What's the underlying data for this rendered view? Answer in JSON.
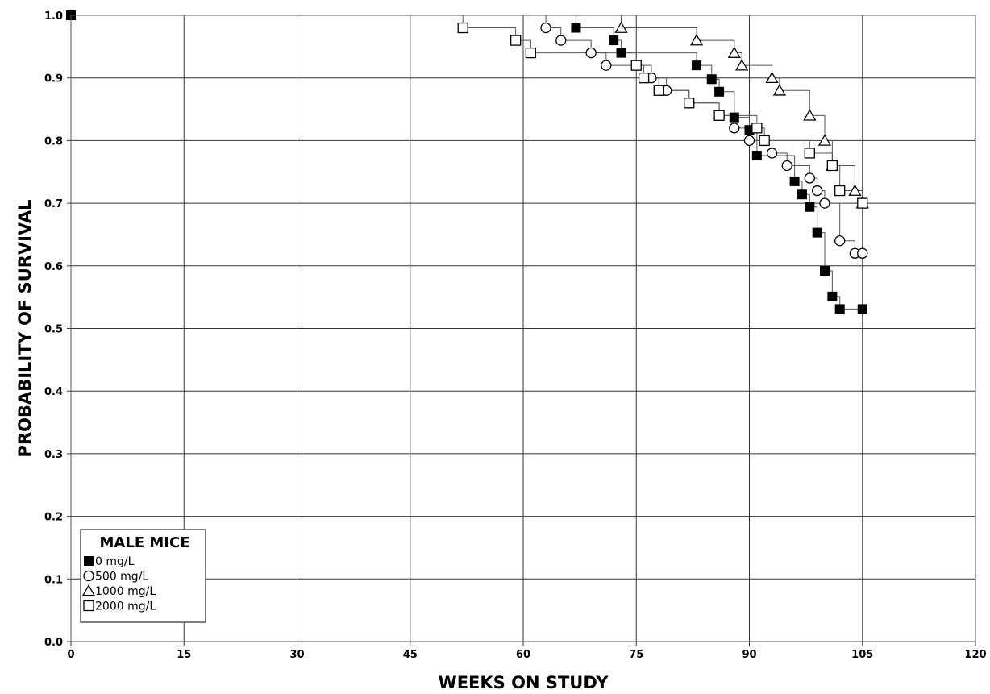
{
  "chart_data": {
    "type": "line",
    "subtype": "kaplan-meier step survival",
    "xlabel": "WEEKS ON STUDY",
    "ylabel": "PROBABILITY OF SURVIVAL",
    "xlim": [
      0,
      120
    ],
    "ylim": [
      0.0,
      1.0
    ],
    "xticks": [
      "0",
      "15",
      "30",
      "45",
      "60",
      "75",
      "90",
      "105",
      "120"
    ],
    "yticks": [
      "0.0",
      "0.1",
      "0.2",
      "0.3",
      "0.4",
      "0.5",
      "0.6",
      "0.7",
      "0.8",
      "0.9",
      "1.0"
    ],
    "grid": true,
    "legend": {
      "title": "MALE MICE",
      "placement": "bottom-left",
      "entries": [
        "0 mg/L",
        "500 mg/L",
        "1000 mg/L",
        "2000 mg/L"
      ]
    },
    "series": [
      {
        "name": "0 mg/L",
        "marker": "filled-square",
        "points": [
          [
            0,
            1.0
          ],
          [
            67,
            0.98
          ],
          [
            72,
            0.96
          ],
          [
            73,
            0.94
          ],
          [
            83,
            0.92
          ],
          [
            85,
            0.898
          ],
          [
            86,
            0.878
          ],
          [
            88,
            0.837
          ],
          [
            90,
            0.817
          ],
          [
            91,
            0.776
          ],
          [
            96,
            0.735
          ],
          [
            97,
            0.714
          ],
          [
            98,
            0.694
          ],
          [
            99,
            0.653
          ],
          [
            100,
            0.592
          ],
          [
            101,
            0.551
          ],
          [
            102,
            0.531
          ],
          [
            105,
            0.531
          ]
        ]
      },
      {
        "name": "500 mg/L",
        "marker": "open-circle",
        "points": [
          [
            63,
            0.98
          ],
          [
            65,
            0.96
          ],
          [
            69,
            0.94
          ],
          [
            71,
            0.92
          ],
          [
            77,
            0.9
          ],
          [
            79,
            0.88
          ],
          [
            82,
            0.86
          ],
          [
            86,
            0.84
          ],
          [
            88,
            0.82
          ],
          [
            90,
            0.8
          ],
          [
            93,
            0.78
          ],
          [
            95,
            0.76
          ],
          [
            98,
            0.74
          ],
          [
            99,
            0.72
          ],
          [
            100,
            0.7
          ],
          [
            102,
            0.64
          ],
          [
            104,
            0.62
          ],
          [
            105,
            0.62
          ]
        ]
      },
      {
        "name": "1000 mg/L",
        "marker": "open-triangle",
        "points": [
          [
            73,
            0.98
          ],
          [
            83,
            0.96
          ],
          [
            88,
            0.94
          ],
          [
            89,
            0.92
          ],
          [
            93,
            0.9
          ],
          [
            94,
            0.88
          ],
          [
            98,
            0.84
          ],
          [
            100,
            0.8
          ],
          [
            101,
            0.76
          ],
          [
            104,
            0.72
          ],
          [
            105,
            0.7
          ]
        ]
      },
      {
        "name": "2000 mg/L",
        "marker": "open-square",
        "points": [
          [
            52,
            0.98
          ],
          [
            59,
            0.96
          ],
          [
            61,
            0.94
          ],
          [
            75,
            0.92
          ],
          [
            76,
            0.9
          ],
          [
            78,
            0.88
          ],
          [
            82,
            0.86
          ],
          [
            86,
            0.84
          ],
          [
            91,
            0.82
          ],
          [
            92,
            0.8
          ],
          [
            98,
            0.78
          ],
          [
            101,
            0.76
          ],
          [
            102,
            0.72
          ],
          [
            105,
            0.7
          ]
        ]
      }
    ]
  }
}
